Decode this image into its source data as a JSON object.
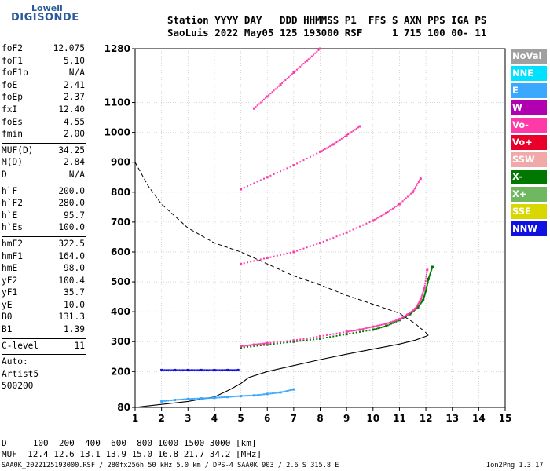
{
  "logo": {
    "line1": "Lowell",
    "line2": "DIGISONDE"
  },
  "header": {
    "line1": "Station YYYY DAY   DDD HHMMSS P1  FFS S AXN PPS IGA PS",
    "line2": "SaoLuis 2022 May05 125 193000 RSF     1 715 100 00- 11"
  },
  "params": {
    "group1": [
      {
        "name": "foF2",
        "value": "12.075"
      },
      {
        "name": "foF1",
        "value": "5.10"
      },
      {
        "name": "foF1p",
        "value": "N/A"
      },
      {
        "name": "foE",
        "value": "2.41"
      },
      {
        "name": "foEp",
        "value": "2.37"
      },
      {
        "name": "fxI",
        "value": "12.40"
      },
      {
        "name": "foEs",
        "value": "4.55"
      },
      {
        "name": "fmin",
        "value": "2.00"
      }
    ],
    "group2": [
      {
        "name": "MUF(D)",
        "value": "34.25"
      },
      {
        "name": "M(D)",
        "value": "2.84"
      },
      {
        "name": "D",
        "value": "N/A"
      }
    ],
    "group3": [
      {
        "name": "h`F",
        "value": "200.0"
      },
      {
        "name": "h`F2",
        "value": "280.0"
      },
      {
        "name": "h`E",
        "value": "95.7"
      },
      {
        "name": "h`Es",
        "value": "100.0"
      }
    ],
    "group4": [
      {
        "name": "hmF2",
        "value": "322.5"
      },
      {
        "name": "hmF1",
        "value": "164.0"
      },
      {
        "name": "hmE",
        "value": "98.0"
      },
      {
        "name": "yF2",
        "value": "100.4"
      },
      {
        "name": "yF1",
        "value": "35.7"
      },
      {
        "name": "yE",
        "value": "10.0"
      },
      {
        "name": "B0",
        "value": "131.3"
      },
      {
        "name": "B1",
        "value": "1.39"
      }
    ],
    "group5": [
      {
        "name": "C-level",
        "value": "11"
      }
    ],
    "scaling": [
      "Auto:",
      "Artist5",
      "500200"
    ]
  },
  "legend": [
    {
      "label": "NoVal",
      "color": "#a0a0a0"
    },
    {
      "label": "NNE",
      "color": "#00e0ff"
    },
    {
      "label": "E",
      "color": "#3aa8ff"
    },
    {
      "label": "W",
      "color": "#b000b0"
    },
    {
      "label": "Vo-",
      "color": "#ff3aa8"
    },
    {
      "label": "Vo+",
      "color": "#e8002a"
    },
    {
      "label": "SSW",
      "color": "#f0a8a8"
    },
    {
      "label": "X-",
      "color": "#007800"
    },
    {
      "label": "X+",
      "color": "#70b860"
    },
    {
      "label": "SSE",
      "color": "#d8d800"
    },
    {
      "label": "NNW",
      "color": "#1010e0"
    }
  ],
  "footer": {
    "line_d": "D     100  200  400  600  800 1000 1500 3000 [km]",
    "line_muf": "MUF  12.4 12.6 13.1 13.9 15.0 16.8 21.7 34.2 [MHz]",
    "file": "SAA0K_2022125193000.RSF / 280fx256h 50 kHz 5.0 km / DPS-4 SAA0K 903 / 2.6 S 315.8 E",
    "version": "Ion2Png 1.3.17"
  },
  "chart_data": {
    "type": "scatter",
    "xlim": [
      1,
      15
    ],
    "ylim": [
      80,
      1280
    ],
    "x_ticks": [
      1,
      2,
      3,
      4,
      5,
      6,
      7,
      8,
      9,
      10,
      11,
      12,
      13,
      14,
      15
    ],
    "y_ticks": [
      80,
      200,
      300,
      400,
      500,
      600,
      700,
      800,
      900,
      1000,
      1100,
      1280
    ],
    "grid": true,
    "series": [
      {
        "name": "X-",
        "color": "#007800",
        "x": [
          5.0,
          6.0,
          7.0,
          8.0,
          9.0,
          10.0,
          10.5,
          11.0,
          11.4,
          11.7,
          11.9,
          12.0,
          12.1,
          12.25
        ],
        "y": [
          280,
          290,
          300,
          310,
          325,
          340,
          352,
          372,
          392,
          415,
          440,
          470,
          510,
          550
        ]
      },
      {
        "name": "Vo-",
        "color": "#ff3aa8",
        "x": [
          5.0,
          5.5,
          6.0,
          7.0,
          8.0,
          9.0,
          9.5,
          10.0,
          10.5,
          11.0,
          11.3,
          11.6,
          11.8,
          11.95,
          12.05
        ],
        "y": [
          285,
          290,
          295,
          304,
          318,
          333,
          340,
          350,
          360,
          375,
          390,
          410,
          440,
          480,
          540
        ]
      },
      {
        "name": "Vo- 2-hop",
        "color": "#ff3aa8",
        "x": [
          5.0,
          6.0,
          7.0,
          8.0,
          9.0,
          10.0,
          10.5,
          11.0,
          11.5,
          11.8
        ],
        "y": [
          560,
          580,
          600,
          630,
          665,
          705,
          730,
          760,
          800,
          845
        ]
      },
      {
        "name": "Vo- 3-hop",
        "color": "#ff3aa8",
        "x": [
          5.0,
          6.0,
          7.0,
          8.0,
          8.5,
          9.0,
          9.5
        ],
        "y": [
          810,
          850,
          890,
          935,
          960,
          990,
          1020
        ]
      },
      {
        "name": "Vo- 4-hop",
        "color": "#ff3aa8",
        "x": [
          5.5,
          6.0,
          6.5,
          7.0,
          7.5,
          8.0
        ],
        "y": [
          1080,
          1120,
          1160,
          1200,
          1240,
          1280
        ]
      },
      {
        "name": "Es",
        "color": "#1010e0",
        "x": [
          2.0,
          2.5,
          3.0,
          3.5,
          4.0,
          4.5,
          4.9
        ],
        "y": [
          205,
          205,
          205,
          205,
          205,
          205,
          205
        ]
      },
      {
        "name": "E",
        "color": "#3aa8ff",
        "x": [
          2.0,
          2.5,
          3.0,
          3.5,
          4.0,
          4.5,
          5.0,
          5.5,
          6.0,
          6.5,
          7.0
        ],
        "y": [
          100,
          105,
          108,
          110,
          112,
          115,
          118,
          120,
          125,
          130,
          140
        ]
      }
    ],
    "profile_dashed": {
      "x": [
        1.0,
        1.5,
        2.0,
        3.0,
        4.0,
        5.0,
        6.0,
        7.0,
        8.0,
        9.0,
        10.0,
        11.0,
        11.6,
        12.0,
        12.1
      ],
      "y": [
        900,
        820,
        760,
        680,
        630,
        600,
        560,
        520,
        490,
        455,
        425,
        395,
        360,
        330,
        320
      ]
    },
    "profile_solid": {
      "x": [
        1.0,
        1.5,
        2.0,
        3.0,
        4.0,
        4.6,
        5.0,
        5.3,
        6.0,
        7.0,
        8.0,
        9.0,
        10.0,
        11.0,
        11.6,
        12.0,
        12.1
      ],
      "y": [
        80,
        85,
        90,
        100,
        115,
        140,
        160,
        180,
        200,
        220,
        240,
        258,
        275,
        292,
        305,
        318,
        322
      ]
    }
  }
}
